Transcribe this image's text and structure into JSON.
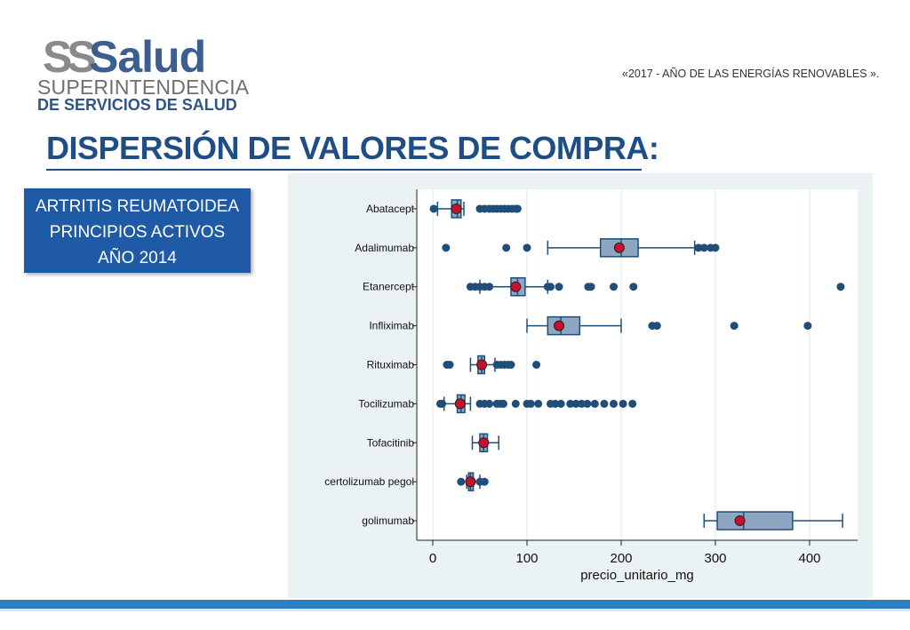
{
  "header": {
    "logo_ss": "SS",
    "logo_salud": "Salud",
    "logo_line1": "SUPERINTENDENCIA",
    "logo_line2": "DE SERVICIOS DE SALUD",
    "tagline": "«2017 - AÑO DE LAS ENERGÍAS RENOVABLES »."
  },
  "title": "DISPERSIÓN DE VALORES DE COMPRA:",
  "label_box": {
    "line1": "ARTRITIS REUMATOIDEA",
    "line2": "PRINCIPIOS ACTIVOS",
    "line3": "AÑO 2014"
  },
  "colors": {
    "title": "#1f4e86",
    "label_box": "#1f5aa6",
    "box_fill": "#8fa6c1",
    "line": "#1f4e79",
    "outlier": "#1f4e79",
    "mean_marker": "#c8102e",
    "chart_bg": "#eaf2f3"
  },
  "chart_data": {
    "type": "box",
    "orientation": "horizontal",
    "xlabel": "precio_unitario_mg",
    "xlim": [
      0,
      450
    ],
    "xticks": [
      0,
      100,
      200,
      300,
      400
    ],
    "grid": "vertical",
    "series": [
      {
        "name": "Abatacept",
        "whisker_low": 5,
        "q1": 20,
        "median": 26,
        "q3": 30,
        "whisker_high": 33,
        "mean": 25,
        "outliers": [
          1,
          50,
          55,
          60,
          64,
          68,
          72,
          76,
          80,
          84,
          88,
          90
        ]
      },
      {
        "name": "Adalimumab",
        "whisker_low": 122,
        "q1": 178,
        "median": 200,
        "q3": 218,
        "whisker_high": 278,
        "mean": 198,
        "outliers": [
          14,
          78,
          100,
          282,
          288,
          295,
          300
        ]
      },
      {
        "name": "Etanercept",
        "whisker_low": 50,
        "q1": 83,
        "median": 90,
        "q3": 98,
        "whisker_high": 122,
        "mean": 88,
        "outliers": [
          40,
          45,
          50,
          55,
          60,
          122,
          125,
          134,
          165,
          168,
          192,
          213,
          433
        ]
      },
      {
        "name": "Infliximab",
        "whisker_low": 100,
        "q1": 122,
        "median": 136,
        "q3": 156,
        "whisker_high": 200,
        "mean": 134,
        "outliers": [
          233,
          238,
          320,
          398
        ]
      },
      {
        "name": "Rituximab",
        "whisker_low": 40,
        "q1": 48,
        "median": 52,
        "q3": 55,
        "whisker_high": 66,
        "mean": 52,
        "outliers": [
          15,
          18,
          68,
          72,
          76,
          80,
          83,
          110
        ]
      },
      {
        "name": "Tocilizumab",
        "whisker_low": 12,
        "q1": 26,
        "median": 30,
        "q3": 34,
        "whisker_high": 40,
        "mean": 29,
        "outliers": [
          8,
          10,
          50,
          55,
          60,
          68,
          72,
          75,
          88,
          100,
          104,
          112,
          125,
          130,
          136,
          146,
          152,
          158,
          164,
          172,
          182,
          192,
          202,
          212
        ]
      },
      {
        "name": "Tofacitinib",
        "whisker_low": 42,
        "q1": 50,
        "median": 54,
        "q3": 58,
        "whisker_high": 70,
        "mean": 54,
        "outliers": []
      },
      {
        "name": "certolizumab pegol",
        "whisker_low": 36,
        "q1": 38,
        "median": 40,
        "q3": 43,
        "whisker_high": 50,
        "mean": 40,
        "outliers": [
          30,
          50,
          55
        ]
      },
      {
        "name": "golimumab",
        "whisker_low": 288,
        "q1": 302,
        "median": 330,
        "q3": 382,
        "whisker_high": 435,
        "mean": 326,
        "outliers": []
      }
    ]
  }
}
